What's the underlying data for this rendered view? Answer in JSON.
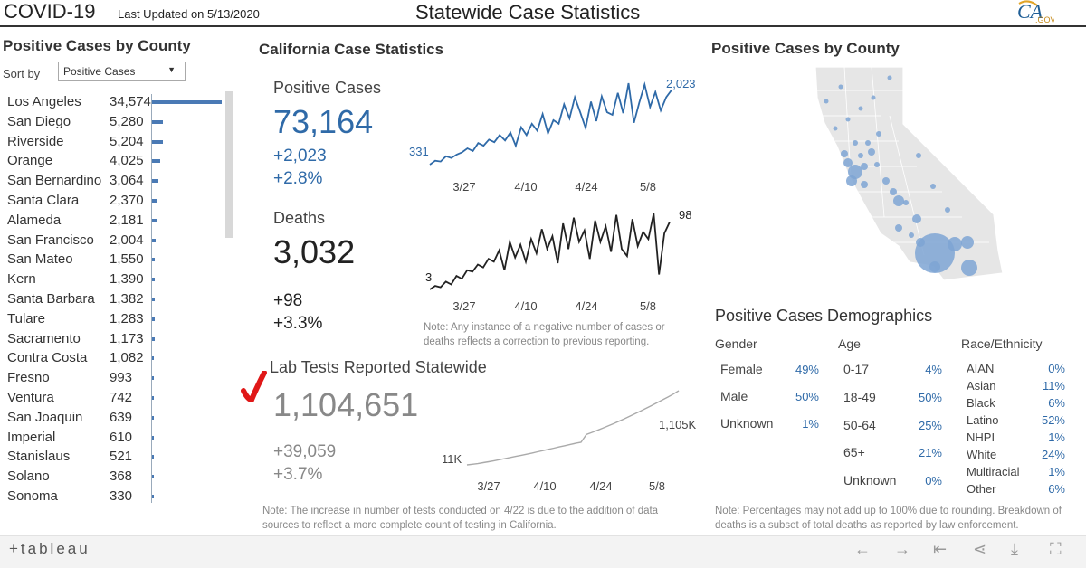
{
  "header": {
    "brand": "COVID-19",
    "updated": "Last Updated on 5/13/2020",
    "title": "Statewide Case Statistics",
    "logo_text": "CA",
    "logo_sub": ".GOV"
  },
  "left_panel": {
    "title": "Positive Cases by County",
    "sort_label": "Sort by",
    "sort_value": "Positive Cases",
    "counties": [
      {
        "name": "Los Angeles",
        "value": "34,574",
        "n": 34574
      },
      {
        "name": "San Diego",
        "value": "5,280",
        "n": 5280
      },
      {
        "name": "Riverside",
        "value": "5,204",
        "n": 5204
      },
      {
        "name": "Orange",
        "value": "4,025",
        "n": 4025
      },
      {
        "name": "San Bernardino",
        "value": "3,064",
        "n": 3064
      },
      {
        "name": "Santa Clara",
        "value": "2,370",
        "n": 2370
      },
      {
        "name": "Alameda",
        "value": "2,181",
        "n": 2181
      },
      {
        "name": "San Francisco",
        "value": "2,004",
        "n": 2004
      },
      {
        "name": "San Mateo",
        "value": "1,550",
        "n": 1550
      },
      {
        "name": "Kern",
        "value": "1,390",
        "n": 1390
      },
      {
        "name": "Santa Barbara",
        "value": "1,382",
        "n": 1382
      },
      {
        "name": "Tulare",
        "value": "1,283",
        "n": 1283
      },
      {
        "name": "Sacramento",
        "value": "1,173",
        "n": 1173
      },
      {
        "name": "Contra Costa",
        "value": "1,082",
        "n": 1082
      },
      {
        "name": "Fresno",
        "value": "993",
        "n": 993
      },
      {
        "name": "Ventura",
        "value": "742",
        "n": 742
      },
      {
        "name": "San Joaquin",
        "value": "639",
        "n": 639
      },
      {
        "name": "Imperial",
        "value": "610",
        "n": 610
      },
      {
        "name": "Stanislaus",
        "value": "521",
        "n": 521
      },
      {
        "name": "Solano",
        "value": "368",
        "n": 368
      },
      {
        "name": "Sonoma",
        "value": "330",
        "n": 330
      }
    ]
  },
  "stats": {
    "title": "California Case Statistics",
    "positive": {
      "label": "Positive Cases",
      "total": "73,164",
      "delta": "+2,023",
      "pct": "+2.8%"
    },
    "deaths": {
      "label": "Deaths",
      "total": "3,032",
      "delta": "+98",
      "pct": "+3.3%"
    },
    "tests": {
      "label": "Lab Tests Reported Statewide",
      "total": "1,104,651",
      "delta": "+39,059",
      "pct": "+3.7%"
    },
    "note_negative": "Note: Any instance of a negative number of cases or deaths reflects a correction to previous reporting.",
    "note_tests": "Note: The increase in number of tests conducted on 4/22 is due to the addition of data sources to reflect a more complete count of testing in California."
  },
  "chart_data": [
    {
      "type": "line",
      "name": "positive-cases-daily",
      "x_ticks": [
        "3/27",
        "4/10",
        "4/24",
        "5/8"
      ],
      "start_label": "331",
      "end_label": "2,023",
      "color": "#2f6aa8",
      "values": [
        331,
        420,
        400,
        520,
        480,
        560,
        610,
        700,
        640,
        820,
        760,
        900,
        840,
        1000,
        880,
        1060,
        760,
        1180,
        1000,
        1260,
        1100,
        1480,
        1040,
        1340,
        1260,
        1700,
        1380,
        1860,
        1520,
        1160,
        1760,
        1320,
        1880,
        1520,
        1460,
        1960,
        1500,
        2180,
        1280,
        1740,
        2150,
        1640,
        1980,
        1560,
        1860,
        2023
      ]
    },
    {
      "type": "line",
      "name": "deaths-daily",
      "x_ticks": [
        "3/27",
        "4/10",
        "4/24",
        "5/8"
      ],
      "start_label": "3",
      "end_label": "98",
      "color": "#222222",
      "values": [
        3,
        8,
        6,
        14,
        10,
        22,
        18,
        30,
        28,
        38,
        34,
        46,
        42,
        58,
        30,
        70,
        48,
        66,
        42,
        74,
        54,
        88,
        60,
        78,
        40,
        96,
        60,
        104,
        70,
        86,
        46,
        100,
        70,
        92,
        56,
        108,
        60,
        50,
        102,
        64,
        84,
        74,
        110,
        24,
        82,
        98
      ]
    },
    {
      "type": "line",
      "name": "lab-tests-cumulative",
      "x_ticks": [
        "3/27",
        "4/10",
        "4/24",
        "5/8"
      ],
      "start_label": "11K",
      "end_label": "1,105K",
      "color": "#aaaaaa",
      "values": [
        11,
        20,
        30,
        44,
        58,
        72,
        88,
        104,
        120,
        136,
        152,
        168,
        186,
        204,
        222,
        240,
        258,
        276,
        294,
        312,
        330,
        345,
        460,
        490,
        520,
        552,
        586,
        620,
        656,
        692,
        730,
        768,
        806,
        846,
        886,
        928,
        970,
        1012,
        1056,
        1105
      ]
    }
  ],
  "map": {
    "title": "Positive Cases by County"
  },
  "demographics": {
    "title": "Positive Cases Demographics",
    "gender_head": "Gender",
    "age_head": "Age",
    "race_head": "Race/Ethnicity",
    "gender": [
      {
        "label": "Female",
        "pct": "49%"
      },
      {
        "label": "Male",
        "pct": "50%"
      },
      {
        "label": "Unknown",
        "pct": "1%"
      }
    ],
    "age": [
      {
        "label": "0-17",
        "pct": "4%"
      },
      {
        "label": "18-49",
        "pct": "50%"
      },
      {
        "label": "50-64",
        "pct": "25%"
      },
      {
        "label": "65+",
        "pct": "21%"
      },
      {
        "label": "Unknown",
        "pct": "0%"
      }
    ],
    "race": [
      {
        "label": "AIAN",
        "pct": "0%"
      },
      {
        "label": "Asian",
        "pct": "11%"
      },
      {
        "label": "Black",
        "pct": "6%"
      },
      {
        "label": "Latino",
        "pct": "52%"
      },
      {
        "label": "NHPI",
        "pct": "1%"
      },
      {
        "label": "White",
        "pct": "24%"
      },
      {
        "label": "Multiracial",
        "pct": "1%"
      },
      {
        "label": "Other",
        "pct": "6%"
      }
    ],
    "note": "Note: Percentages may not add up to 100% due to rounding. Breakdown of deaths is a subset of total deaths as reported by law enforcement."
  },
  "footer": {
    "logo": "+tableau",
    "icons": [
      "back-arrow-icon",
      "forward-arrow-icon",
      "first-page-icon",
      "share-icon",
      "download-icon",
      "fullscreen-icon"
    ]
  }
}
